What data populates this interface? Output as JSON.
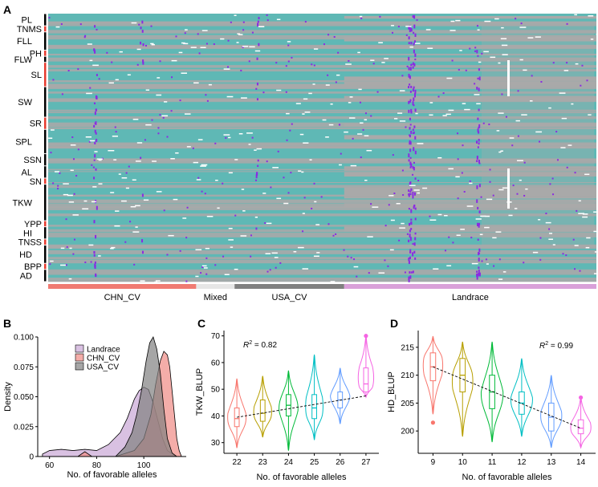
{
  "panels": {
    "a": "A",
    "b": "B",
    "c": "C",
    "d": "D"
  },
  "chart_data": [
    {
      "type": "heatmap",
      "panel": "A",
      "colors": {
        "favorable": "#5fb8b5",
        "unfavorable": "#a9a9a9",
        "missing": "#ffffff",
        "heterozygous": "#8a2be2",
        "trait_bar": "#e63a2e"
      },
      "traits": [
        {
          "name": "PL",
          "rows": 2,
          "bar": "black"
        },
        {
          "name": "TNMS",
          "rows": 1,
          "bar": "red"
        },
        {
          "name": "FLL",
          "rows": 3,
          "bar": "black"
        },
        {
          "name": "PH",
          "rows": 1,
          "bar": "red"
        },
        {
          "name": "FLW",
          "rows": 1,
          "bar": "black"
        },
        {
          "name": "SL",
          "rows": 4,
          "bar": "red"
        },
        {
          "name": "SW",
          "rows": 5,
          "bar": "black"
        },
        {
          "name": "SR",
          "rows": 2,
          "bar": "red"
        },
        {
          "name": "SPL",
          "rows": 4,
          "bar": "black"
        },
        {
          "name": "SSN",
          "rows": 2,
          "bar": "black"
        },
        {
          "name": "AL",
          "rows": 2,
          "bar": "black"
        },
        {
          "name": "SN",
          "rows": 1,
          "bar": "red"
        },
        {
          "name": "TKW",
          "rows": 6,
          "bar": "black"
        },
        {
          "name": "YPP",
          "rows": 1,
          "bar": "red"
        },
        {
          "name": "HI",
          "rows": 2,
          "bar": "black"
        },
        {
          "name": "TNSS",
          "rows": 1,
          "bar": "red"
        },
        {
          "name": "HD",
          "rows": 3,
          "bar": "black"
        },
        {
          "name": "BPP",
          "rows": 1,
          "bar": "red"
        },
        {
          "name": "AD",
          "rows": 2,
          "bar": "black"
        }
      ],
      "groups": [
        {
          "name": "CHN_CV",
          "fraction": 0.27,
          "color": "#f07b72"
        },
        {
          "name": "Mixed",
          "fraction": 0.07,
          "color": "#e6e6e6"
        },
        {
          "name": "USA_CV",
          "fraction": 0.2,
          "color": "#808080"
        },
        {
          "name": "Landrace",
          "fraction": 0.46,
          "color": "#d9a0d9"
        }
      ]
    },
    {
      "type": "area",
      "panel": "B",
      "xlabel": "No. of favorable alleles",
      "ylabel": "Density",
      "xlim": [
        55,
        118
      ],
      "ylim": [
        0,
        0.1
      ],
      "xticks": [
        60,
        80,
        100
      ],
      "yticks": [
        "0",
        "0.025",
        "0.050",
        "0.075",
        "0.100"
      ],
      "legend_position": "top-left",
      "series": [
        {
          "name": "Landrace",
          "color": "#c9a6d6",
          "x": [
            57,
            60,
            65,
            70,
            75,
            80,
            85,
            90,
            93,
            96,
            98,
            100,
            102,
            104,
            106,
            108,
            110,
            113
          ],
          "y": [
            0.002,
            0.005,
            0.006,
            0.005,
            0.006,
            0.005,
            0.01,
            0.02,
            0.032,
            0.048,
            0.055,
            0.058,
            0.056,
            0.045,
            0.03,
            0.015,
            0.005,
            0.001
          ]
        },
        {
          "name": "CHN_CV",
          "color": "#f08a85",
          "x": [
            72,
            75,
            78,
            88,
            96,
            100,
            103,
            105,
            107,
            108.5,
            110,
            111,
            112,
            113,
            114,
            115,
            116
          ],
          "y": [
            0,
            0.004,
            0,
            0,
            0.005,
            0.015,
            0.035,
            0.06,
            0.08,
            0.088,
            0.085,
            0.075,
            0.055,
            0.035,
            0.015,
            0.005,
            0
          ]
        },
        {
          "name": "USA_CV",
          "color": "#808080",
          "x": [
            88,
            92,
            95,
            97,
            99,
            101,
            102.5,
            104,
            105.5,
            107,
            108.5,
            110,
            112,
            114
          ],
          "y": [
            0,
            0.008,
            0.02,
            0.035,
            0.055,
            0.08,
            0.095,
            0.1,
            0.09,
            0.07,
            0.04,
            0.015,
            0.003,
            0
          ]
        }
      ]
    },
    {
      "type": "violin",
      "panel": "C",
      "xlabel": "No. of favorable alleles",
      "ylabel": "TKW_BLUP",
      "r2_label": "R",
      "r2_sup": "2",
      "r2_value": " = 0.82",
      "ylim": [
        26,
        72
      ],
      "yticks": [
        30,
        40,
        50,
        60,
        70
      ],
      "categories": [
        "22",
        "23",
        "24",
        "25",
        "26",
        "27"
      ],
      "colors": [
        "#f8766d",
        "#b79f00",
        "#00ba38",
        "#00bfc4",
        "#619cff",
        "#f564e3"
      ],
      "stats": [
        {
          "min": 28,
          "q1": 36,
          "median": 39,
          "q3": 43,
          "max": 54,
          "mode": 38
        },
        {
          "min": 32,
          "q1": 38,
          "median": 41,
          "q3": 46,
          "max": 55,
          "mode": 40
        },
        {
          "min": 27,
          "q1": 40,
          "median": 44,
          "q3": 48,
          "max": 57,
          "mode": 44
        },
        {
          "min": 31,
          "q1": 39,
          "median": 43,
          "q3": 48,
          "max": 63,
          "mode": 41
        },
        {
          "min": 37,
          "q1": 43,
          "median": 46,
          "q3": 49,
          "max": 58,
          "mode": 47
        },
        {
          "min": 47,
          "q1": 49,
          "median": 52,
          "q3": 58,
          "max": 70,
          "mode": 51
        }
      ],
      "outliers": [
        {
          "category": "27",
          "value": 70
        }
      ],
      "trend": [
        [
          0,
          39.5
        ],
        [
          5,
          47.5
        ]
      ]
    },
    {
      "type": "violin",
      "panel": "D",
      "xlabel": "No. of favorable alleles",
      "ylabel": "HD_BLUP",
      "r2_label": "R",
      "r2_sup": "2",
      "r2_value": " = 0.99",
      "ylim": [
        196,
        218
      ],
      "yticks": [
        200,
        205,
        210,
        215
      ],
      "categories": [
        "9",
        "10",
        "11",
        "12",
        "13",
        "14"
      ],
      "colors": [
        "#f8766d",
        "#b79f00",
        "#00ba38",
        "#00bfc4",
        "#619cff",
        "#f564e3"
      ],
      "stats": [
        {
          "min": 203,
          "q1": 209,
          "median": 211.5,
          "q3": 214,
          "max": 217,
          "mode": 213
        },
        {
          "min": 199,
          "q1": 207,
          "median": 210,
          "q3": 213,
          "max": 216,
          "mode": 210
        },
        {
          "min": 198,
          "q1": 204,
          "median": 207,
          "q3": 210,
          "max": 216,
          "mode": 206
        },
        {
          "min": 199,
          "q1": 203,
          "median": 205,
          "q3": 207,
          "max": 213,
          "mode": 205
        },
        {
          "min": 197,
          "q1": 200,
          "median": 202.5,
          "q3": 205,
          "max": 210,
          "mode": 202
        },
        {
          "min": 197,
          "q1": 199.5,
          "median": 200.5,
          "q3": 202,
          "max": 206,
          "mode": 200
        }
      ],
      "outliers": [
        {
          "category": "9",
          "value": 201.5
        },
        {
          "category": "14",
          "value": 206
        }
      ],
      "trend": [
        [
          0,
          211.5
        ],
        [
          5,
          200.5
        ]
      ]
    }
  ]
}
